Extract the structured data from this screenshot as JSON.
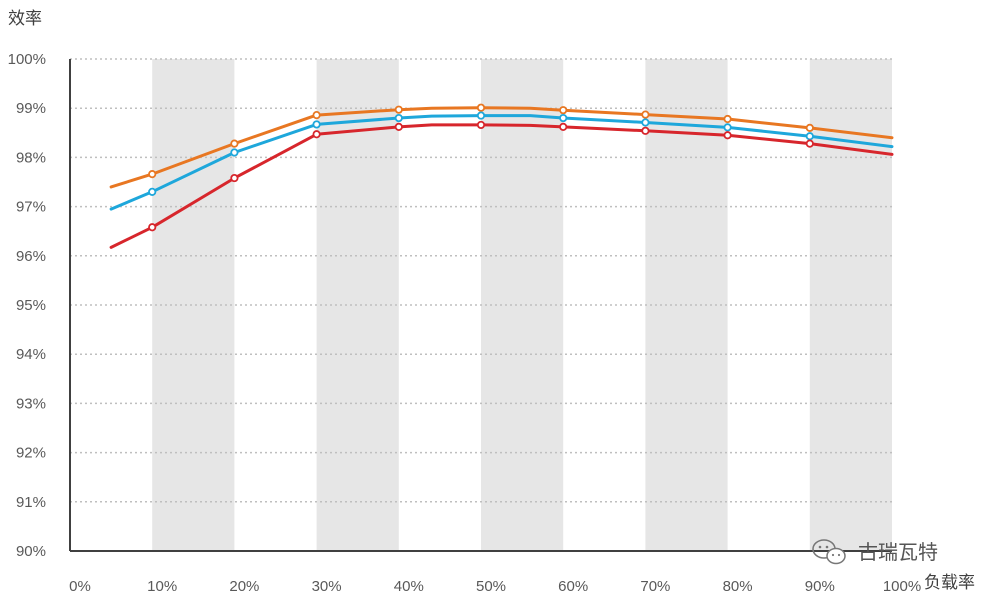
{
  "chart_data": {
    "type": "line",
    "ylabel": "效率",
    "xlabel": "负载率",
    "xlim": [
      0,
      100
    ],
    "ylim": [
      90,
      100
    ],
    "x_ticks": [
      "0%",
      "10%",
      "20%",
      "30%",
      "40%",
      "50%",
      "60%",
      "70%",
      "80%",
      "90%",
      "100%"
    ],
    "y_ticks": [
      "90%",
      "91%",
      "92%",
      "93%",
      "94%",
      "95%",
      "96%",
      "97%",
      "98%",
      "99%",
      "100%"
    ],
    "grid": "horizontal dotted",
    "bands": [
      [
        10,
        20
      ],
      [
        30,
        40
      ],
      [
        50,
        60
      ],
      [
        70,
        80
      ],
      [
        90,
        100
      ]
    ],
    "series": [
      {
        "color": "#E87722",
        "x": [
          5,
          10,
          20,
          30,
          40,
          44,
          50,
          56,
          60,
          70,
          80,
          90,
          100
        ],
        "y": [
          97.4,
          97.66,
          98.28,
          98.86,
          98.97,
          99.0,
          99.01,
          99.0,
          98.96,
          98.87,
          98.78,
          98.6,
          98.4
        ],
        "markers": [
          10,
          20,
          30,
          40,
          50,
          60,
          70,
          80,
          90
        ]
      },
      {
        "color": "#1EA7DB",
        "x": [
          5,
          10,
          20,
          30,
          40,
          44,
          50,
          56,
          60,
          70,
          80,
          90,
          100
        ],
        "y": [
          96.95,
          97.3,
          98.1,
          98.67,
          98.8,
          98.84,
          98.85,
          98.85,
          98.8,
          98.71,
          98.61,
          98.43,
          98.22
        ],
        "markers": [
          10,
          20,
          30,
          40,
          50,
          60,
          70,
          80,
          90
        ]
      },
      {
        "color": "#D7262C",
        "x": [
          5,
          10,
          20,
          30,
          40,
          44,
          50,
          56,
          60,
          70,
          80,
          90,
          100
        ],
        "y": [
          96.17,
          96.58,
          97.58,
          98.47,
          98.62,
          98.66,
          98.66,
          98.65,
          98.62,
          98.54,
          98.45,
          98.28,
          98.06
        ],
        "markers": [
          10,
          20,
          30,
          40,
          50,
          60,
          70,
          80,
          90
        ]
      }
    ]
  },
  "watermark": {
    "text": "古瑞瓦特",
    "icon": "wechat-icon"
  },
  "colors": {
    "band": "#E6E6E6",
    "axis": "#404040",
    "grid": "#BFBFBF"
  }
}
